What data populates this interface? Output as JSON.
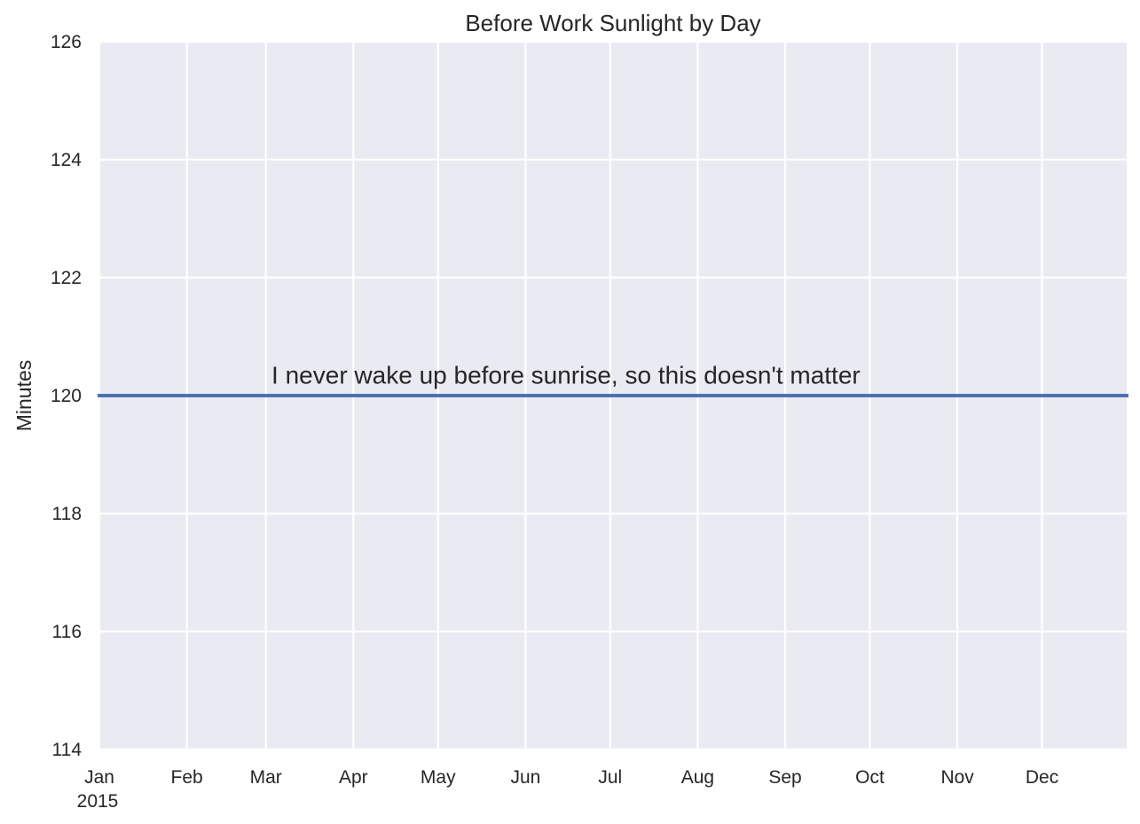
{
  "chart_data": {
    "type": "line",
    "title": "Before Work Sunlight by Day",
    "xlabel": "",
    "ylabel": "Minutes",
    "x_start": "2015-01-01",
    "x_end": "2015-12-31",
    "xticks": [
      {
        "date": "2015-01-01",
        "label": "Jan",
        "sublabel": "2015"
      },
      {
        "date": "2015-02-01",
        "label": "Feb"
      },
      {
        "date": "2015-03-01",
        "label": "Mar"
      },
      {
        "date": "2015-04-01",
        "label": "Apr"
      },
      {
        "date": "2015-05-01",
        "label": "May"
      },
      {
        "date": "2015-06-01",
        "label": "Jun"
      },
      {
        "date": "2015-07-01",
        "label": "Jul"
      },
      {
        "date": "2015-08-01",
        "label": "Aug"
      },
      {
        "date": "2015-09-01",
        "label": "Sep"
      },
      {
        "date": "2015-10-01",
        "label": "Oct"
      },
      {
        "date": "2015-11-01",
        "label": "Nov"
      },
      {
        "date": "2015-12-01",
        "label": "Dec"
      }
    ],
    "ylim": [
      114,
      126
    ],
    "yticks": [
      114,
      116,
      118,
      120,
      122,
      124,
      126
    ],
    "series": [
      {
        "x": [
          "2015-01-01",
          "2015-12-31"
        ],
        "values": [
          120,
          120
        ],
        "color": "#4c72b0"
      }
    ],
    "annotations": [
      {
        "text": "I never wake up before sunrise, so this doesn't matter",
        "x": "2015-03-03",
        "y": 120.2
      }
    ],
    "grid": true,
    "style": {
      "background": "#eaeaf2",
      "grid_color": "#ffffff"
    }
  }
}
